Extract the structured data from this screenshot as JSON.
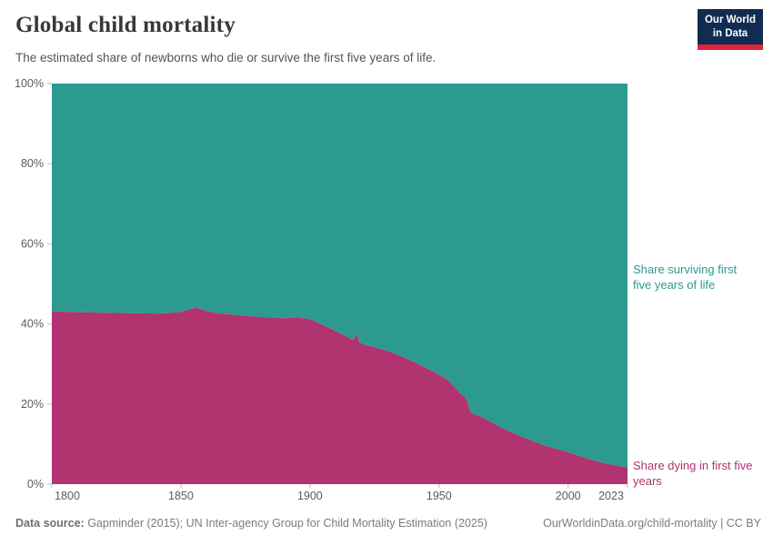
{
  "header": {
    "title": "Global child mortality",
    "subtitle": "The estimated share of newborns who die or survive the first five years of life.",
    "logo": {
      "line1": "Our World",
      "line2": "in Data"
    }
  },
  "annotations": {
    "surviving": "Share surviving first five years of life",
    "dying": "Share dying in first five years"
  },
  "footer": {
    "source_label": "Data source:",
    "source_text": " Gapminder (2015); UN Inter-agency Group for Child Mortality Estimation (2025)",
    "link_text": "OurWorldinData.org/child-mortality | CC BY"
  },
  "colors": {
    "dying": "#b1336f",
    "surviving": "#2d9a8f",
    "axis_text": "#5c5c5c",
    "logo_navy": "#102c52",
    "logo_red": "#e0243a"
  },
  "chart_data": {
    "type": "area",
    "stacked": true,
    "title": "Global child mortality",
    "xlabel": "",
    "ylabel": "",
    "legend_position": "right-annotations",
    "grid": false,
    "x_range": [
      1800,
      2023
    ],
    "y_range": [
      0,
      100
    ],
    "x_ticks": [
      1800,
      1850,
      1900,
      1950,
      2000,
      2023
    ],
    "y_ticks": [
      "0%",
      "20%",
      "40%",
      "60%",
      "80%",
      "100%"
    ],
    "y_tick_values": [
      0,
      20,
      40,
      60,
      80,
      100
    ],
    "x": [
      1800,
      1810,
      1820,
      1830,
      1840,
      1845,
      1850,
      1853,
      1856,
      1860,
      1865,
      1870,
      1875,
      1880,
      1885,
      1890,
      1895,
      1900,
      1903,
      1906,
      1910,
      1913,
      1916,
      1917,
      1918,
      1919,
      1921,
      1925,
      1930,
      1935,
      1940,
      1945,
      1950,
      1953,
      1956,
      1958,
      1960,
      1961,
      1962,
      1964,
      1967,
      1970,
      1975,
      1980,
      1985,
      1990,
      1995,
      2000,
      2005,
      2010,
      2015,
      2020,
      2023
    ],
    "series": [
      {
        "name": "Share dying in first five years",
        "color": "#b1336f",
        "values": [
          43.2,
          42.9,
          42.8,
          42.7,
          42.6,
          42.7,
          43.0,
          43.6,
          44.1,
          43.2,
          42.6,
          42.3,
          42.0,
          41.8,
          41.6,
          41.4,
          41.6,
          41.2,
          40.3,
          39.4,
          38.2,
          37.2,
          36.2,
          36.0,
          37.8,
          35.6,
          34.8,
          34.2,
          33.3,
          32.0,
          30.6,
          29.0,
          27.3,
          26.2,
          24.3,
          22.8,
          21.8,
          20.5,
          18.0,
          17.4,
          16.6,
          15.6,
          13.8,
          12.4,
          11.1,
          9.8,
          8.9,
          8.0,
          6.9,
          5.9,
          5.1,
          4.5,
          4.2
        ]
      },
      {
        "name": "Share surviving first five years of life",
        "color": "#2d9a8f",
        "values": [
          56.8,
          57.1,
          57.2,
          57.3,
          57.4,
          57.3,
          57.0,
          56.4,
          55.9,
          56.8,
          57.4,
          57.7,
          58.0,
          58.2,
          58.4,
          58.6,
          58.4,
          58.8,
          59.7,
          60.6,
          61.8,
          62.8,
          63.8,
          64.0,
          62.2,
          64.4,
          65.2,
          65.8,
          66.7,
          68.0,
          69.4,
          71.0,
          72.7,
          73.8,
          75.7,
          77.2,
          78.2,
          79.5,
          82.0,
          82.6,
          83.4,
          84.4,
          86.2,
          87.6,
          88.9,
          90.2,
          91.1,
          92.0,
          93.1,
          94.1,
          94.9,
          95.5,
          95.8
        ]
      }
    ]
  }
}
